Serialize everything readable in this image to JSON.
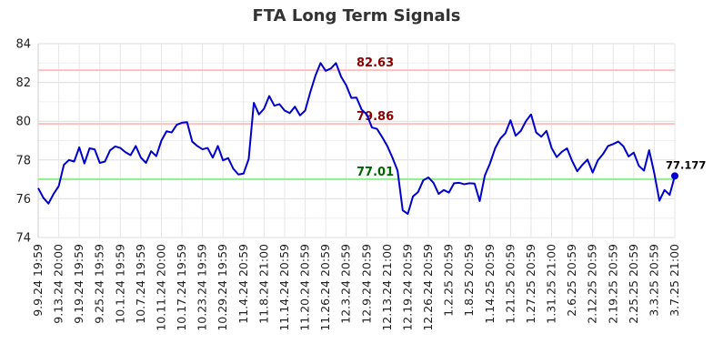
{
  "chart_data": {
    "type": "line",
    "title": "FTA Long Term Signals",
    "xlabel": "",
    "ylabel": "",
    "ylim": [
      74,
      84
    ],
    "yticks": [
      74,
      76,
      78,
      80,
      82,
      84
    ],
    "grid": true,
    "x_tick_labels": [
      "9.9.24 19:59",
      "9.13.24 20:00",
      "9.19.24 19:59",
      "9.25.24 19:59",
      "10.1.24 19:59",
      "10.7.24 19:59",
      "10.11.24 20:00",
      "10.17.24 19:59",
      "10.23.24 19:59",
      "10.29.24 19:59",
      "11.4.24 20:59",
      "11.8.24 21:00",
      "11.14.24 20:59",
      "11.20.24 20:59",
      "11.26.24 20:59",
      "12.3.24 20:59",
      "12.9.24 20:59",
      "12.13.24 21:00",
      "12.19.24 20:59",
      "12.26.24 20:59",
      "1.2.25 20:59",
      "1.8.25 20:59",
      "1.14.25 20:59",
      "1.21.25 20:59",
      "1.27.25 20:59",
      "1.31.25 21:00",
      "2.6.25 20:59",
      "2.12.25 20:59",
      "2.19.25 20:59",
      "2.25.25 20:59",
      "3.3.25 20:59",
      "3.7.25 21:00"
    ],
    "series": [
      {
        "color": "#0000cc",
        "values": [
          76.55,
          76.05,
          75.75,
          76.25,
          76.65,
          77.75,
          78.0,
          77.92,
          78.65,
          77.82,
          78.6,
          78.55,
          77.85,
          77.92,
          78.5,
          78.7,
          78.62,
          78.4,
          78.25,
          78.72,
          78.12,
          77.85,
          78.45,
          78.2,
          79.0,
          79.48,
          79.42,
          79.82,
          79.92,
          79.95,
          78.95,
          78.72,
          78.55,
          78.62,
          78.12,
          78.72,
          77.98,
          78.1,
          77.55,
          77.25,
          77.3,
          78.05,
          80.95,
          80.35,
          80.65,
          81.3,
          80.8,
          80.88,
          80.55,
          80.42,
          80.75,
          80.3,
          80.55,
          81.5,
          82.35,
          83.0,
          82.6,
          82.72,
          83.0,
          82.3,
          81.85,
          81.2,
          81.22,
          80.6,
          80.35,
          79.68,
          79.6,
          79.18,
          78.72,
          78.12,
          77.45,
          75.4,
          75.22,
          76.12,
          76.35,
          76.95,
          77.1,
          76.82,
          76.25,
          76.45,
          76.32,
          76.8,
          76.82,
          76.75,
          76.8,
          76.78,
          75.88,
          77.2,
          77.82,
          78.6,
          79.1,
          79.38,
          80.05,
          79.25,
          79.5,
          80.0,
          80.35,
          79.42,
          79.2,
          79.5,
          78.62,
          78.15,
          78.42,
          78.6,
          77.95,
          77.42,
          77.75,
          78.02,
          77.35,
          77.98,
          78.3,
          78.72,
          78.82,
          78.95,
          78.7,
          78.18,
          78.38,
          77.7,
          77.45,
          78.5,
          77.32,
          75.9,
          76.45,
          76.2,
          77.177
        ]
      }
    ],
    "levels": [
      {
        "value": 82.63,
        "label": "82.63",
        "line_color": "#ffbfbf",
        "label_color": "#8b0000"
      },
      {
        "value": 79.86,
        "label": "79.86",
        "line_color": "#ffbfbf",
        "label_color": "#8b0000"
      },
      {
        "value": 77.01,
        "label": "77.01",
        "line_color": "#90ee90",
        "label_color": "#006400"
      }
    ],
    "last_value_label": "77.177"
  }
}
